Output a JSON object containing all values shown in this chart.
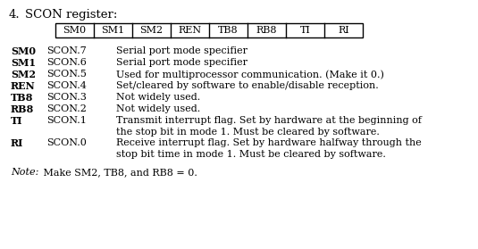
{
  "title_number": "4.",
  "title_text": "SCON register:",
  "register_bits": [
    "SM0",
    "SM1",
    "SM2",
    "REN",
    "TB8",
    "RB8",
    "TI",
    "RI"
  ],
  "row_data": [
    [
      "SM0",
      "SCON.7",
      [
        "Serial port mode specifier"
      ]
    ],
    [
      "SM1",
      "SCON.6",
      [
        "Serial port mode specifier"
      ]
    ],
    [
      "SM2",
      "SCON.5",
      [
        "Used for multiprocessor communication. (Make it 0.)"
      ]
    ],
    [
      "REN",
      "SCON.4",
      [
        "Set/cleared by software to enable/disable reception."
      ]
    ],
    [
      "TB8",
      "SCON.3",
      [
        "Not widely used."
      ]
    ],
    [
      "RB8",
      "SCON.2",
      [
        "Not widely used."
      ]
    ],
    [
      "TI",
      "SCON.1",
      [
        "Transmit interrupt flag. Set by hardware at the beginning of",
        "the stop bit in mode 1. Must be cleared by software."
      ]
    ],
    [
      "RI",
      "SCON.0",
      [
        "Receive interrupt flag. Set by hardware halfway through the",
        "stop bit time in mode 1. Must be cleared by software."
      ]
    ]
  ],
  "note_italic": "Note:",
  "note_text": "   Make SM2, TB8, and RB8 = 0.",
  "bg_color": "#ffffff",
  "text_color": "#000000",
  "font_family": "DejaVu Serif"
}
